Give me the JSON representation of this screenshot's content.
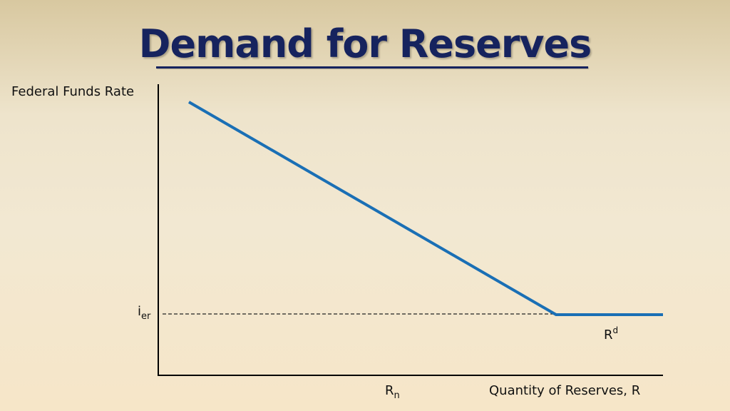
{
  "title": "Demand for Reserves",
  "y_axis_label": "Federal Funds Rate",
  "x_axis_label": "Quantity of Reserves, R",
  "rate_label": {
    "main": "i",
    "sub": "er"
  },
  "quantity_label": {
    "main": "R",
    "sub": "n"
  },
  "curve_label": {
    "main": "R",
    "sup": "d"
  },
  "colors": {
    "title": "#16235e",
    "curve": "#1a6fb5",
    "axes": "#000000"
  }
}
